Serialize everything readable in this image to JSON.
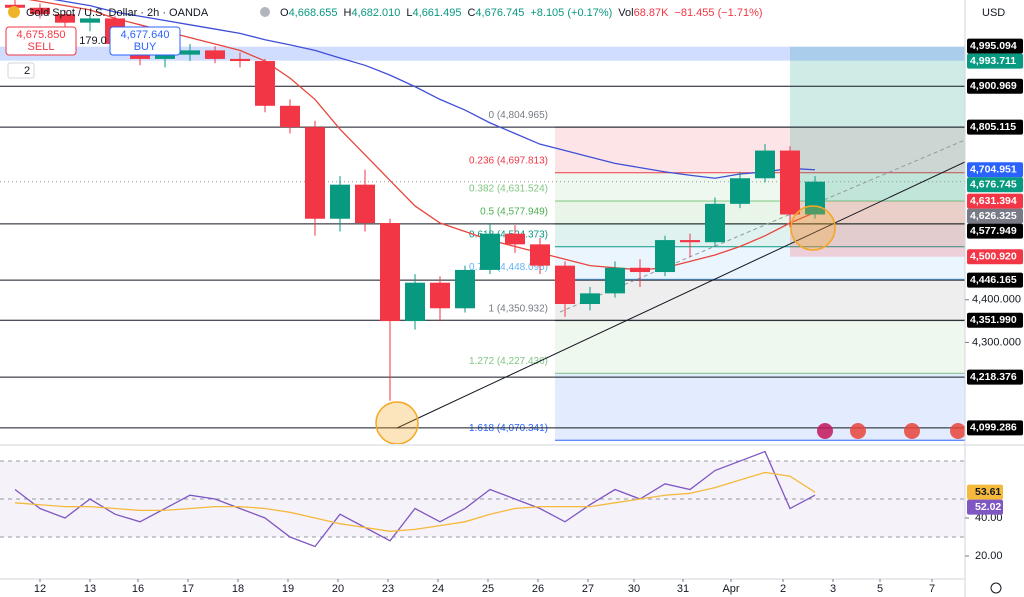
{
  "header": {
    "symbol": "Gold Spot / U.S. Dollar · 2h · OANDA",
    "ohlc": [
      "O",
      "4,668.655",
      "H",
      "4,682.010",
      "L",
      "4,661.495",
      "C",
      "4,676.745",
      "+8.105 (+0.17%)"
    ],
    "vol": [
      "Vol",
      "68.87K",
      "−81.455 (−1.71%)"
    ],
    "sell_price": "4,675.850",
    "sell": "SELL",
    "spread": "179.0",
    "buy_price": "4,677.640",
    "buy": "BUY",
    "currency": "USD",
    "layers": "2"
  },
  "chart_data": [
    {
      "type": "candlestick",
      "xlim": [
        -0.8,
        18.5
      ],
      "ylim": [
        4061.6,
        5103.2
      ],
      "x": [
        -0.5,
        0,
        0.5,
        1,
        1.5,
        2,
        2.5,
        3,
        3.5,
        4,
        4.5,
        5,
        5.5,
        6,
        6.5,
        7,
        7.5,
        8,
        8.5,
        9,
        9.5,
        10,
        10.5,
        11,
        11.5,
        12,
        12.5,
        13,
        13.5,
        14,
        14.5,
        15,
        15.5
      ],
      "open": [
        5092,
        5085,
        5070,
        5050,
        5060,
        5000,
        4965,
        4975,
        4985,
        4965,
        4960,
        4855,
        4805,
        4590,
        4670,
        4580,
        4350,
        4440,
        4380,
        4470,
        4555,
        4530,
        4480,
        4390,
        4415,
        4475,
        4465,
        4540,
        4535,
        4625,
        4685,
        4750,
        4600
      ],
      "high": [
        5105,
        5095,
        5080,
        5070,
        5065,
        5010,
        4985,
        5000,
        4995,
        4980,
        4965,
        4870,
        4820,
        4690,
        4705,
        4590,
        4460,
        4455,
        4480,
        4580,
        4575,
        4545,
        4490,
        4430,
        4490,
        4495,
        4550,
        4555,
        4640,
        4700,
        4765,
        4760,
        4690
      ],
      "low": [
        5075,
        5060,
        5040,
        5030,
        4990,
        4950,
        4945,
        4960,
        4955,
        4945,
        4840,
        4790,
        4550,
        4560,
        4560,
        4163,
        4330,
        4350,
        4370,
        4460,
        4510,
        4460,
        4360,
        4375,
        4405,
        4430,
        4455,
        4500,
        4525,
        4615,
        4675,
        4570,
        4590
      ],
      "close": [
        5085,
        5070,
        5050,
        5060,
        5000,
        4965,
        4975,
        4985,
        4965,
        4960,
        4855,
        4805,
        4590,
        4670,
        4580,
        4350,
        4440,
        4380,
        4470,
        4555,
        4530,
        4480,
        4390,
        4415,
        4475,
        4465,
        4540,
        4535,
        4625,
        4685,
        4750,
        4600,
        4677
      ],
      "up_color": "#089981",
      "down_color": "#f23645",
      "series": [
        {
          "color": "#3f4fd8",
          "values": [
            5120,
            5110,
            5100,
            5090,
            5075,
            5065,
            5055,
            5045,
            5035,
            5025,
            5010,
            4998,
            4985,
            4967,
            4950,
            4927,
            4900,
            4870,
            4845,
            4815,
            4790,
            4765,
            4750,
            4735,
            4720,
            4710,
            4700,
            4692,
            4685,
            4695,
            4700,
            4708,
            4705
          ]
        },
        {
          "color": "#e8453c",
          "values": [
            5110,
            5100,
            5090,
            5080,
            5060,
            5045,
            5030,
            5015,
            5000,
            4985,
            4960,
            4920,
            4870,
            4800,
            4740,
            4680,
            4620,
            4580,
            4560,
            4540,
            4525,
            4510,
            4495,
            4480,
            4475,
            4470,
            4475,
            4490,
            4505,
            4525,
            4550,
            4580,
            4605
          ]
        }
      ],
      "xticks": [
        {
          "value": 0,
          "label": "12"
        },
        {
          "value": 1,
          "label": "13"
        },
        {
          "value": 1.96,
          "label": "16"
        },
        {
          "value": 2.96,
          "label": "17"
        },
        {
          "value": 3.96,
          "label": "18"
        },
        {
          "value": 4.96,
          "label": "19"
        },
        {
          "value": 5.96,
          "label": "20"
        },
        {
          "value": 6.96,
          "label": "23"
        },
        {
          "value": 7.96,
          "label": "24"
        },
        {
          "value": 8.96,
          "label": "25"
        },
        {
          "value": 9.96,
          "label": "26"
        },
        {
          "value": 10.96,
          "label": "27"
        },
        {
          "value": 11.88,
          "label": "30"
        },
        {
          "value": 12.86,
          "label": "31"
        },
        {
          "value": 13.82,
          "label": "Apr"
        },
        {
          "value": 14.86,
          "label": "2"
        },
        {
          "value": 15.86,
          "label": "3"
        },
        {
          "value": 16.8,
          "label": "5"
        },
        {
          "value": 17.84,
          "label": "7"
        }
      ],
      "yticks": [
        {
          "value": 4400,
          "label": "4,400.000"
        },
        {
          "value": 4300,
          "label": "4,300.000"
        }
      ],
      "price_lines": [
        {
          "value": 4995.094,
          "label": "4,995.094",
          "color": "#000000"
        },
        {
          "value": 4993.711,
          "label": "4,993.711",
          "color": "#089981"
        },
        {
          "value": 4900.969,
          "label": "4,900.969",
          "color": "#000000",
          "line": "solid"
        },
        {
          "value": 4805.115,
          "label": "4,805.115",
          "color": "#000000",
          "line": "solid"
        },
        {
          "value": 4704.951,
          "label": "4,704.951",
          "color": "#2962ff"
        },
        {
          "value": 4676.745,
          "label": "4,676.745",
          "color": "#089981",
          "line": "dotted"
        },
        {
          "value": 4631.394,
          "label": "4,631.394",
          "color": "#f23645"
        },
        {
          "value": 4626.325,
          "label": "4,626.325",
          "color": "#787b86"
        },
        {
          "value": 4577.949,
          "label": "4,577.949",
          "color": "#000000",
          "line": "solid"
        },
        {
          "value": 4500.92,
          "label": "4,500.920",
          "color": "#f23645"
        },
        {
          "value": 4446.165,
          "label": "4,446.165",
          "color": "#000000",
          "line": "solid"
        },
        {
          "value": 4351.99,
          "label": "4,351.990",
          "color": "#000000",
          "line": "solid"
        },
        {
          "value": 4218.376,
          "label": "4,218.376",
          "color": "#000000",
          "line": "solid"
        },
        {
          "value": 4099.286,
          "label": "4,099.286",
          "color": "#000000",
          "line": "solid"
        }
      ],
      "fib": [
        {
          "value": 4804.965,
          "label": "0 (4,804.965)",
          "color": "#787b86"
        },
        {
          "value": 4697.813,
          "label": "0.236 (4,697.813)",
          "color": "#f23645"
        },
        {
          "value": 4631.524,
          "label": "0.382 (4,631.524)",
          "color": "#81c784"
        },
        {
          "value": 4577.949,
          "label": "0.5 (4,577.949)",
          "color": "#4caf50"
        },
        {
          "value": 4524.373,
          "label": "0.618 (4,524.373)",
          "color": "#089981"
        },
        {
          "value": 4448.095,
          "label": "0.786 (4,448.095)",
          "color": "#64b5f6"
        },
        {
          "value": 4350.932,
          "label": "1 (4,350.932)",
          "color": "#787b86"
        },
        {
          "value": 4227.436,
          "label": "1.272 (4,227.436)",
          "color": "#81c784"
        },
        {
          "value": 4070.341,
          "label": "1.618 (4,070.341)",
          "color": "#2962ff"
        }
      ]
    },
    {
      "type": "line",
      "ylim": [
        8.4,
        77.4
      ],
      "yticks": [
        {
          "value": 40,
          "label": "40.00"
        },
        {
          "value": 20,
          "label": "20.00"
        }
      ],
      "bands": [
        30,
        50,
        70
      ],
      "series": [
        {
          "color": "#7e57c2",
          "values": [
            55,
            45,
            40,
            50,
            42,
            38,
            45,
            52,
            50,
            45,
            40,
            30,
            25,
            42,
            35,
            28,
            45,
            38,
            45,
            55,
            50,
            45,
            38,
            47,
            55,
            50,
            58,
            55,
            65,
            70,
            75,
            45,
            52.02
          ],
          "last_label": "52.02"
        },
        {
          "color": "#f5b93c",
          "values": [
            48,
            47,
            46,
            46,
            45,
            44,
            44,
            45,
            46,
            46,
            45,
            43,
            40,
            37,
            35,
            33,
            34,
            36,
            38,
            42,
            45,
            46,
            46,
            46,
            48,
            50,
            52,
            53,
            56,
            60,
            64,
            62,
            53.61
          ],
          "last_label": "53.61"
        }
      ]
    }
  ]
}
